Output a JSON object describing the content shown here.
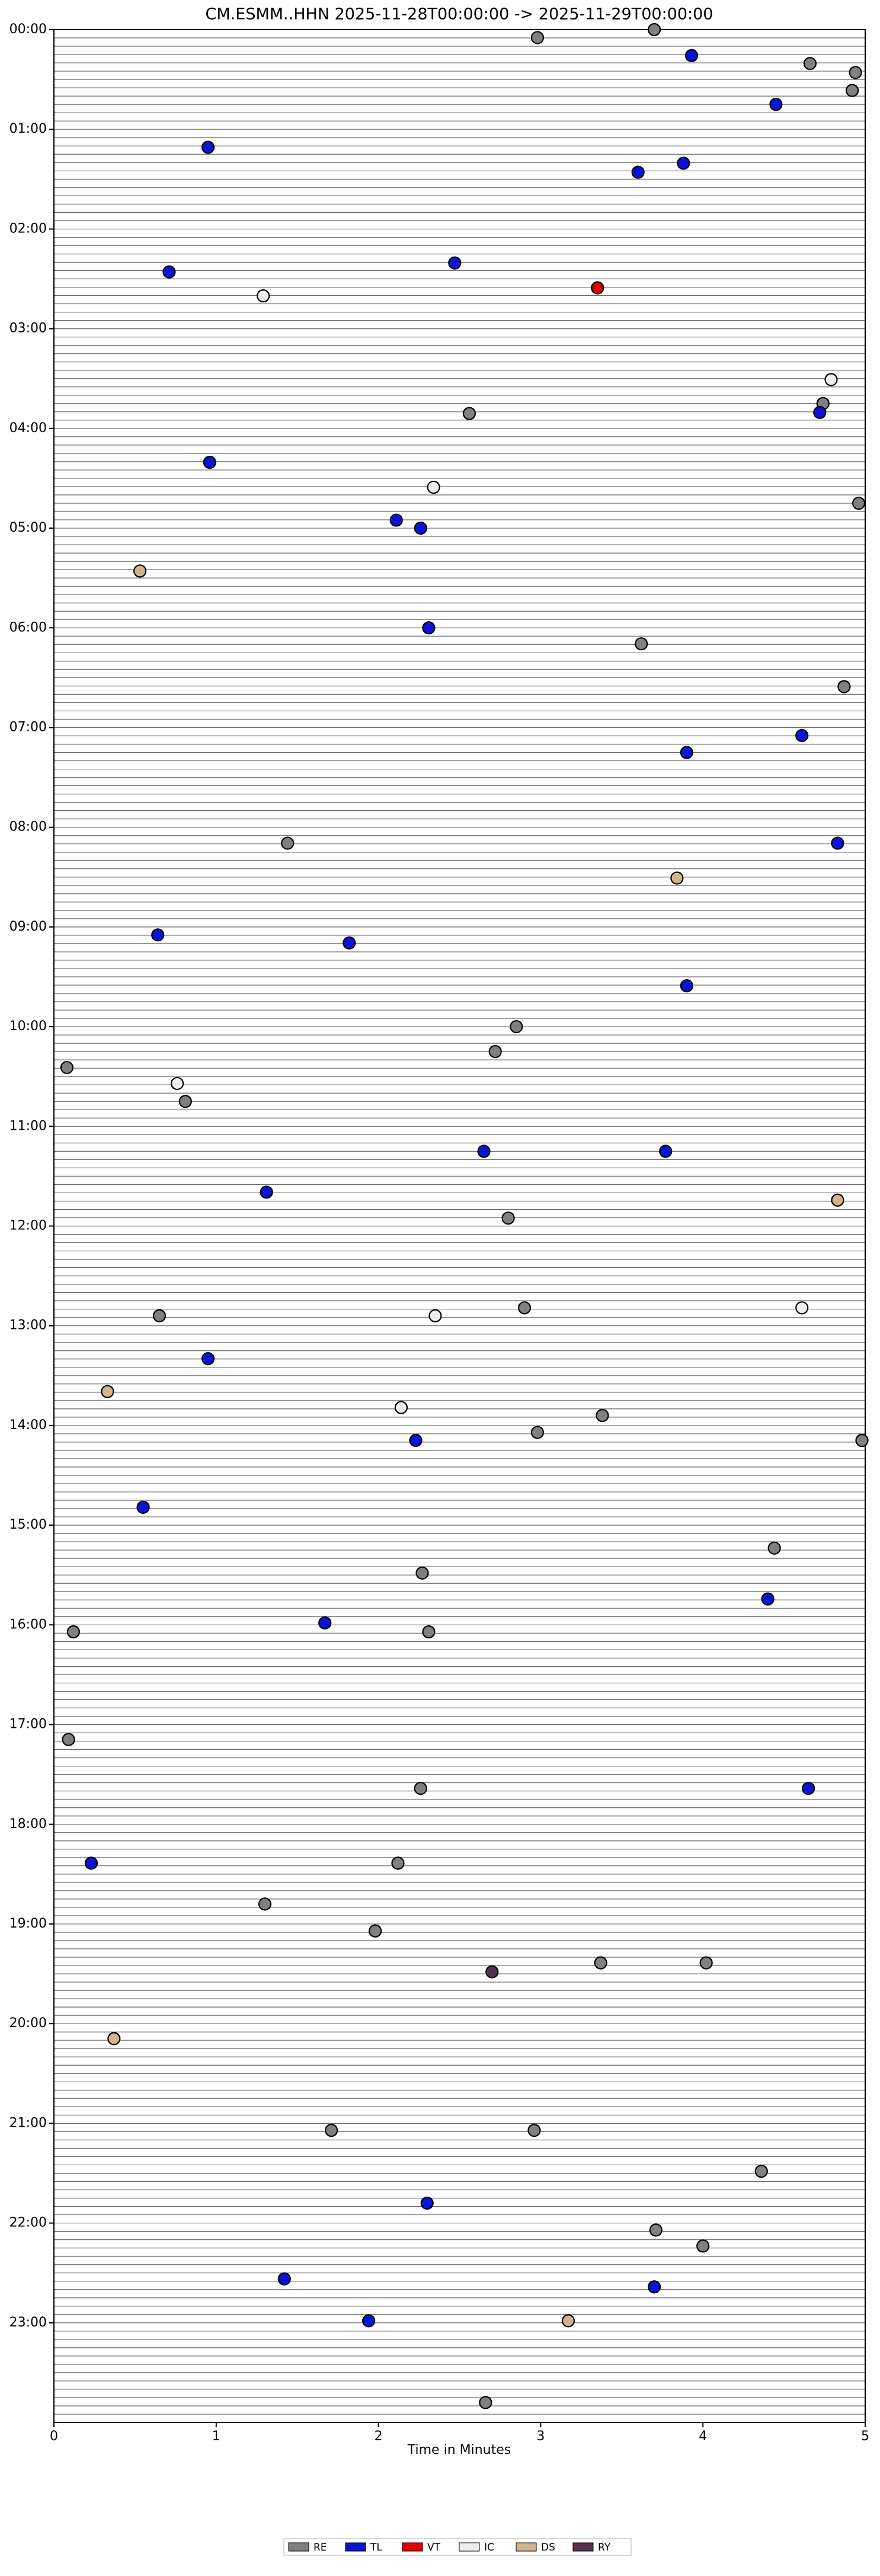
{
  "chart_data": {
    "type": "scatter",
    "title": "CM.ESMM..HHN  2025-11-28T00:00:00 -> 2025-11-29T00:00:00",
    "xlabel": "Time in Minutes",
    "xlim": [
      0,
      5
    ],
    "xticks": [
      0,
      1,
      2,
      3,
      4,
      5
    ],
    "ylim": [
      24,
      0
    ],
    "yticks": [
      {
        "value": 0,
        "label": "00:00"
      },
      {
        "value": 1,
        "label": "01:00"
      },
      {
        "value": 2,
        "label": "02:00"
      },
      {
        "value": 3,
        "label": "03:00"
      },
      {
        "value": 4,
        "label": "04:00"
      },
      {
        "value": 5,
        "label": "05:00"
      },
      {
        "value": 6,
        "label": "06:00"
      },
      {
        "value": 7,
        "label": "07:00"
      },
      {
        "value": 8,
        "label": "08:00"
      },
      {
        "value": 9,
        "label": "09:00"
      },
      {
        "value": 10,
        "label": "10:00"
      },
      {
        "value": 11,
        "label": "11:00"
      },
      {
        "value": 12,
        "label": "12:00"
      },
      {
        "value": 13,
        "label": "13:00"
      },
      {
        "value": 14,
        "label": "14:00"
      },
      {
        "value": 15,
        "label": "15:00"
      },
      {
        "value": 16,
        "label": "16:00"
      },
      {
        "value": 17,
        "label": "17:00"
      },
      {
        "value": 18,
        "label": "18:00"
      },
      {
        "value": 19,
        "label": "19:00"
      },
      {
        "value": 20,
        "label": "20:00"
      },
      {
        "value": 21,
        "label": "21:00"
      },
      {
        "value": 22,
        "label": "22:00"
      },
      {
        "value": 23,
        "label": "23:00"
      }
    ],
    "legend_position": "bottom",
    "series": [
      {
        "name": "RE",
        "color": "#808080",
        "x": [
          2.98,
          3.7,
          4.66,
          4.94,
          4.92,
          4.74,
          2.56,
          4.96,
          3.62,
          4.87,
          1.44,
          2.85,
          2.72,
          0.08,
          0.81,
          2.8,
          2.9,
          0.65,
          3.38,
          2.98,
          4.98,
          4.44,
          2.27,
          0.12,
          2.31,
          0.09,
          2.26,
          2.12,
          1.3,
          1.98,
          3.37,
          4.02,
          1.71,
          2.96,
          4.36,
          3.71,
          4.0,
          2.66
        ],
        "values": [
          0.08,
          0.0,
          0.34,
          0.43,
          0.61,
          3.75,
          3.85,
          4.75,
          6.16,
          6.59,
          8.16,
          10.0,
          10.25,
          10.41,
          10.75,
          11.92,
          12.82,
          12.9,
          13.9,
          14.07,
          14.15,
          15.23,
          15.48,
          16.07,
          16.07,
          17.15,
          17.64,
          18.39,
          18.8,
          19.07,
          19.39,
          19.39,
          21.07,
          21.07,
          21.48,
          22.07,
          22.23,
          23.8
        ]
      },
      {
        "name": "TL",
        "color": "#0a14d2",
        "x": [
          3.93,
          4.45,
          0.95,
          3.88,
          3.6,
          2.47,
          0.71,
          4.72,
          0.96,
          2.11,
          2.26,
          2.31,
          4.61,
          3.9,
          4.83,
          0.64,
          1.82,
          3.9,
          2.65,
          3.77,
          1.31,
          0.95,
          2.23,
          0.55,
          4.4,
          1.67,
          4.65,
          0.23,
          2.3,
          1.42,
          3.7,
          1.94
        ],
        "values": [
          0.26,
          0.75,
          1.18,
          1.34,
          1.43,
          2.34,
          2.43,
          3.84,
          4.34,
          4.92,
          5.0,
          6.0,
          7.08,
          7.25,
          8.16,
          9.08,
          9.16,
          9.59,
          11.25,
          11.25,
          11.66,
          13.33,
          14.15,
          14.82,
          15.74,
          15.98,
          17.64,
          18.39,
          21.8,
          22.56,
          22.64,
          22.98
        ]
      },
      {
        "name": "VT",
        "color": "#e00000",
        "x": [
          3.35
        ],
        "values": [
          2.59
        ]
      },
      {
        "name": "IC",
        "color": "#eeeeee",
        "x": [
          1.29,
          4.79,
          2.34,
          0.76,
          4.61,
          2.35,
          2.14
        ],
        "values": [
          2.67,
          3.51,
          4.59,
          10.57,
          12.82,
          12.9,
          13.82
        ]
      },
      {
        "name": "DS",
        "color": "#d2b48c",
        "x": [
          0.53,
          3.84,
          4.83,
          0.33,
          0.37,
          3.17
        ],
        "values": [
          5.43,
          8.51,
          11.74,
          13.66,
          20.15,
          22.98
        ]
      },
      {
        "name": "RY",
        "color": "#5a3050",
        "x": [
          2.7
        ],
        "values": [
          19.48
        ]
      }
    ]
  }
}
